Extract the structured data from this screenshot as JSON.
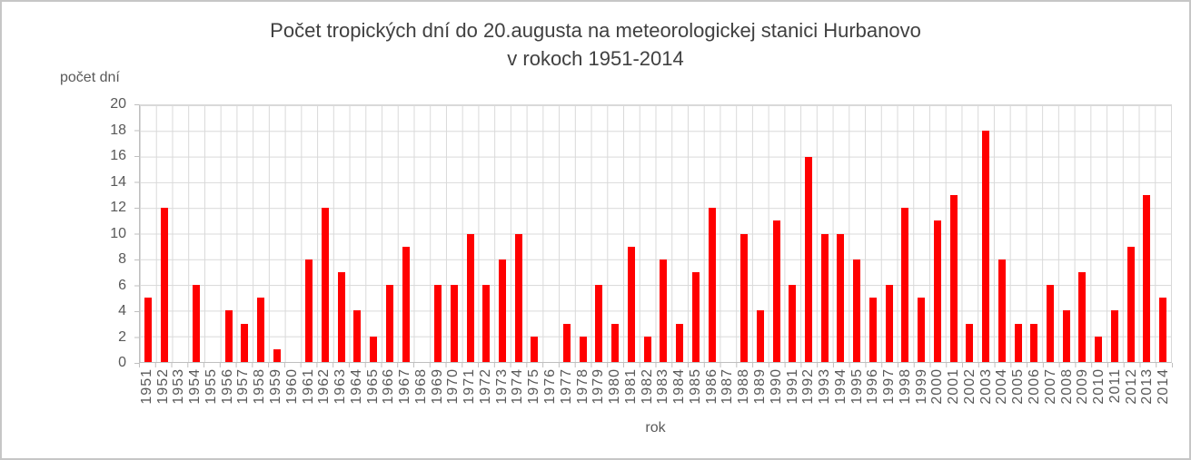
{
  "chart": {
    "title_line1": "Počet tropických dní do 20.augusta na meteorologickej stanici Hurbanovo",
    "title_line2": "v rokoch 1951-2014",
    "y_axis_title": "počet dní",
    "x_axis_title": "rok"
  },
  "chart_data": {
    "type": "bar",
    "title": "Počet tropických dní do 20.augusta na meteorologickej stanici Hurbanovo v rokoch 1951-2014",
    "xlabel": "rok",
    "ylabel": "počet dní",
    "ylim": [
      0,
      20
    ],
    "ytick_step": 2,
    "ytick_labels": [
      "20",
      "18",
      "16",
      "14",
      "12",
      "10",
      "8",
      "6",
      "4",
      "2",
      "0"
    ],
    "grid": true,
    "legend": false,
    "categories": [
      "1951",
      "1952",
      "1953",
      "1954",
      "1955",
      "1956",
      "1957",
      "1958",
      "1959",
      "1960",
      "1961",
      "1962",
      "1963",
      "1964",
      "1965",
      "1966",
      "1967",
      "1968",
      "1969",
      "1970",
      "1971",
      "1972",
      "1973",
      "1974",
      "1975",
      "1976",
      "1977",
      "1978",
      "1979",
      "1980",
      "1981",
      "1982",
      "1983",
      "1984",
      "1985",
      "1986",
      "1987",
      "1988",
      "1989",
      "1990",
      "1991",
      "1992",
      "1993",
      "1994",
      "1995",
      "1996",
      "1997",
      "1998",
      "1999",
      "2000",
      "2001",
      "2002",
      "2003",
      "2004",
      "2005",
      "2006",
      "2007",
      "2008",
      "2009",
      "2010",
      "2011",
      "2012",
      "2013",
      "2014"
    ],
    "values": [
      5,
      12,
      0,
      6,
      0,
      4,
      3,
      5,
      1,
      0,
      8,
      12,
      7,
      4,
      2,
      6,
      9,
      0,
      6,
      6,
      10,
      6,
      8,
      10,
      2,
      0,
      3,
      2,
      6,
      3,
      9,
      2,
      8,
      3,
      7,
      12,
      0,
      10,
      4,
      11,
      6,
      16,
      10,
      10,
      8,
      5,
      6,
      12,
      5,
      11,
      13,
      3,
      18,
      8,
      3,
      3,
      6,
      4,
      7,
      2,
      4,
      9,
      13,
      5
    ]
  },
  "colors": {
    "bar": "#FF0000",
    "gridline": "#D9D9D9",
    "axis_line": "#BFBFBF",
    "title_text": "#404040",
    "axis_text": "#595959",
    "frame_border": "#C6C6C6"
  }
}
